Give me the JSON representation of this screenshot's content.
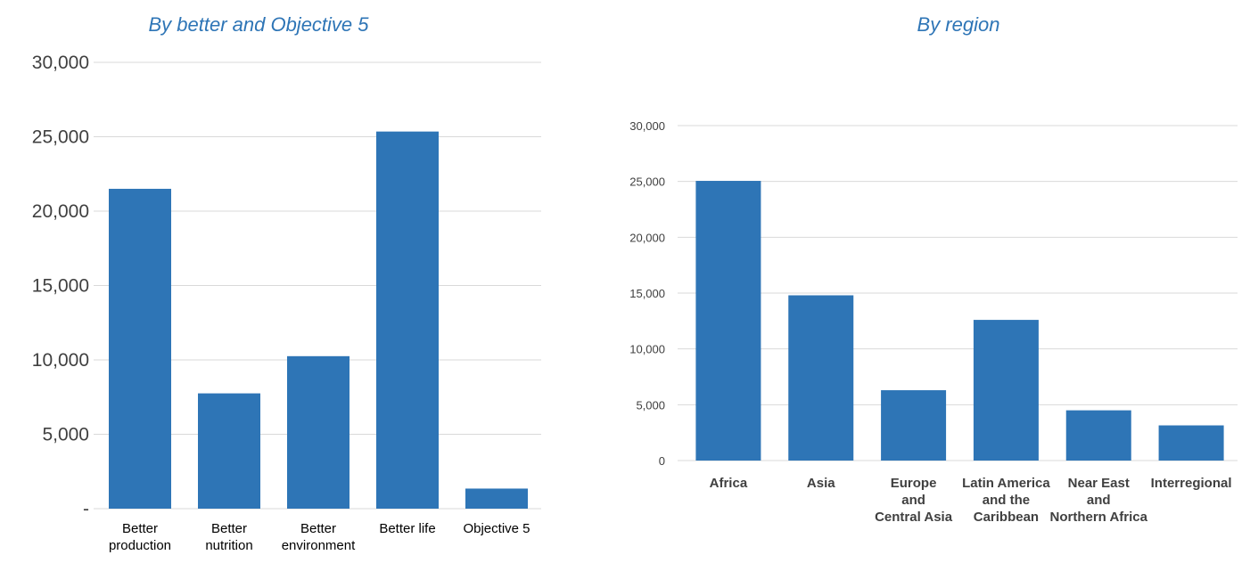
{
  "chart_data": [
    {
      "type": "bar",
      "title": "By better and Objective 5",
      "categories": [
        [
          "Better",
          "production"
        ],
        [
          "Better",
          "nutrition"
        ],
        [
          "Better",
          "environment"
        ],
        [
          "Better life"
        ],
        [
          "Objective 5"
        ]
      ],
      "values": [
        21500,
        7750,
        10250,
        25350,
        1350
      ],
      "ylim": [
        0,
        30000
      ],
      "yticks": [
        0,
        5000,
        10000,
        15000,
        20000,
        25000,
        30000
      ],
      "ytick_labels": [
        "-",
        "5,000",
        "10,000",
        "15,000",
        "20,000",
        "25,000",
        "30,000"
      ],
      "grid": true,
      "color": "#2e75b6"
    },
    {
      "type": "bar",
      "title": "By region",
      "categories": [
        [
          "Africa"
        ],
        [
          "Asia"
        ],
        [
          "Europe",
          "and",
          "Central Asia"
        ],
        [
          "Latin America",
          "and the",
          "Caribbean"
        ],
        [
          "Near East",
          "and",
          "Northern Africa"
        ],
        [
          "Interregional"
        ]
      ],
      "values": [
        25050,
        14800,
        6300,
        12600,
        4500,
        3150
      ],
      "ylim": [
        0,
        30000
      ],
      "yticks": [
        0,
        5000,
        10000,
        15000,
        20000,
        25000,
        30000
      ],
      "ytick_labels": [
        "0",
        "5,000",
        "10,000",
        "15,000",
        "20,000",
        "25,000",
        "30,000"
      ],
      "grid": true,
      "color": "#2e75b6"
    }
  ]
}
